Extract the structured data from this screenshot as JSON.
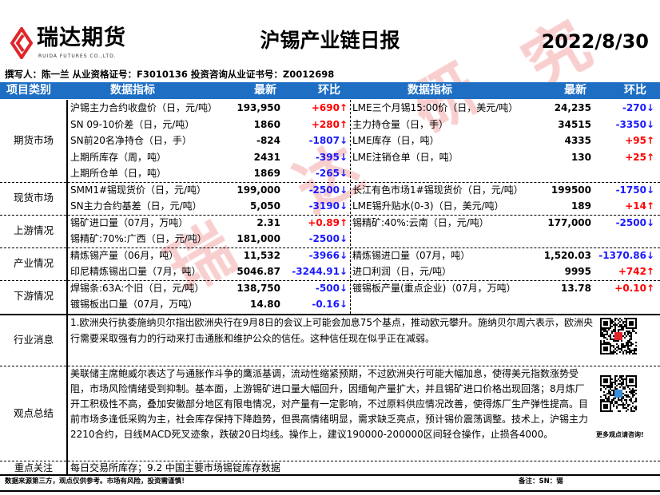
{
  "logo": {
    "name_cn": "瑞达期货",
    "name_en": "RUIDA FUTURES CO.,LTD.",
    "brand_color": "#e0262b"
  },
  "title": "沪锡产业链日报",
  "date": "2022/8/30",
  "author_line": "撰写人：陈一兰   从业资格证号：F3010136   投资咨询从业证书号：Z0012698",
  "watermark": [
    "瑞",
    "达",
    "研",
    "究"
  ],
  "header": {
    "category": "项目类别",
    "indicator": "数据指标",
    "latest": "最新",
    "change": "环比",
    "indicator2": "数据指标",
    "latest2": "最新",
    "change2": "环比",
    "color": "#1e6fc4"
  },
  "colors": {
    "up": "#ff0000",
    "down": "#1a1aff"
  },
  "sections": [
    {
      "category": "期货市场",
      "rows": [
        {
          "name": "沪锡主力合约收盘价（日，元/吨）",
          "value": "193,950",
          "change": "+690↑",
          "name2": "LME三个月锡15:00价（日，美元/吨）",
          "value2": "24,235",
          "change2": "-270↓"
        },
        {
          "name": "SN 09-10价差（日，元/吨）",
          "value": "1860",
          "change": "+280↑",
          "name2": "主力持仓量（日，手）",
          "value2": "34515",
          "change2": "-3350↓"
        },
        {
          "name": "SN前20名净持仓（日，手）",
          "value": "-824",
          "change": "-1807↓",
          "name2": "LME库存（日，吨）",
          "value2": "4335",
          "change2": "+95↑"
        },
        {
          "name": "上期所库存（周，吨）",
          "value": "2431",
          "change": "-395↓",
          "name2": "LME注销仓单（日，吨）",
          "value2": "130",
          "change2": "+25↑"
        },
        {
          "name": "上期所仓单（日，吨）",
          "value": "1869",
          "change": "-265↓",
          "name2": "",
          "value2": "",
          "change2": ""
        }
      ]
    },
    {
      "category": "现货市场",
      "rows": [
        {
          "name": "SMM1#锡现货价（日，元/吨）",
          "value": "199,000",
          "change": "-2500↓",
          "name2": "长江有色市场1#锡现货价（日，元/吨）",
          "value2": "199500",
          "change2": "-1750↓"
        },
        {
          "name": "SN主力合约基差（日，元/吨）",
          "value": "5,050",
          "change": "-3190↓",
          "name2": "LME锡升贴水(0-3)（日，美元/吨）",
          "value2": "189",
          "change2": "+14↑"
        }
      ]
    },
    {
      "category": "上游情况",
      "rows": [
        {
          "name": "锡矿进口量（07月，万吨）",
          "value": "2.31",
          "change": "+0.89↑",
          "name2": "锡精矿:40%:云南（日，元/吨）",
          "value2": "177,000",
          "change2": "-2500↓"
        },
        {
          "name": "锡精矿:70%:广西（日，元/吨）",
          "value": "181,000",
          "change": "-2500↓",
          "name2": "",
          "value2": "",
          "change2": ""
        }
      ]
    },
    {
      "category": "产业情况",
      "rows": [
        {
          "name": "精炼锡产量（06月，吨）",
          "value": "11,532",
          "change": "-3966↓",
          "name2": "精炼锡进口量（07月，吨）",
          "value2": "1,520.03",
          "change2": "-1370.86↓"
        },
        {
          "name": "印尼精炼锡出口量（7月，吨）",
          "value": "5046.87",
          "change": "-3244.91↓",
          "name2": "进口利润（日，元/吨）",
          "value2": "9995",
          "change2": "+742↑"
        }
      ]
    },
    {
      "category": "下游情况",
      "rows": [
        {
          "name": "焊锡条:63A:个旧（日，元/吨）",
          "value": "138,750",
          "change": "-500↓",
          "name2": "镀锡板产量(重点企业)（07月，万吨）",
          "value2": "13.78",
          "change2": "+0.10↑"
        },
        {
          "name": "镀锡板出口量（07月，万吨）",
          "value": "14.80",
          "change": "-0.16↓",
          "name2": "",
          "value2": "",
          "change2": ""
        }
      ]
    }
  ],
  "news": {
    "category": "行业消息",
    "text": "1.欧洲央行执委施纳贝尔指出欧洲央行在9月8日的会议上可能会加息75个基点，推动欧元攀升。施纳贝尔周六表示，欧洲央行需要采取强有力的行动来打击通胀和维护公众的信任。这种信任现在似乎正在减弱。"
  },
  "view": {
    "category": "观点总结",
    "text": "美联储主席鲍威尔表达了与通胀作斗争的鹰派基调，流动性缩紧预期，不过欧洲央行可能大幅加息，使得美元指数涨势受阻，市场风险情绪受到抑制。基本面，上游锡矿进口量大幅回升，因缅甸产量扩大，并且锡矿进口价格出现回落；8月炼厂开工积极性不高，叠加安徽部分地区有限电情况，对产量有一定影响，不过原料供应情况改善，使得炼厂生产弹性提高。目前市场多逢低采购为主，社会库存保持下降趋势，但畏高情绪明显，需求缺乏亮点，预计锡价震荡调整。技术上，沪锡主力2210合约，日线MACD死叉迹象，跌破20日均线。操作上，建议190000-200000区间轻仓操作，止损各4000。"
  },
  "qr_caption": "更多观点请咨询!",
  "focus": {
    "category": "重点关注",
    "text": "每日交易所库存；9.2 中国主要市场锡锭库存数据"
  },
  "footer": {
    "disclaimer": "数据来源第三方，观点仅供参考。市场有风险，投资需谨慎！",
    "note": "备注：SN：锡"
  }
}
